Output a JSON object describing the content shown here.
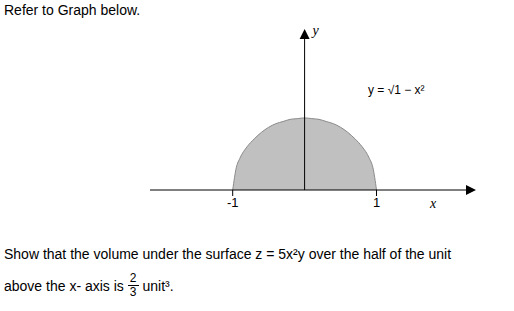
{
  "header": {
    "text": "Refer to Graph below."
  },
  "chart_data": {
    "type": "area",
    "x": [
      -1,
      -0.95,
      -0.9,
      -0.8,
      -0.7,
      -0.6,
      -0.5,
      -0.4,
      -0.3,
      -0.2,
      -0.1,
      0,
      0.1,
      0.2,
      0.3,
      0.4,
      0.5,
      0.6,
      0.7,
      0.8,
      0.9,
      0.95,
      1
    ],
    "values": [
      0,
      0.31,
      0.44,
      0.6,
      0.71,
      0.8,
      0.87,
      0.92,
      0.95,
      0.98,
      0.99,
      1,
      0.99,
      0.98,
      0.95,
      0.92,
      0.87,
      0.8,
      0.71,
      0.6,
      0.44,
      0.31,
      0
    ],
    "color": "#c0c0c0",
    "xlim": [
      -2.15,
      2.3
    ],
    "xticks": [
      -1,
      1
    ],
    "ylim": [
      0,
      2.15
    ],
    "tick_labels": "x",
    "x_label": "x",
    "y_label": "y",
    "annotation": "y = √1 − x²"
  },
  "problem": {
    "line1": "Show that the volume under the surface z = 5x²y over the half of the unit",
    "line2_before": "above the x- axis is",
    "numerator": "2",
    "denominator": "3",
    "line2_after": "unit³."
  }
}
